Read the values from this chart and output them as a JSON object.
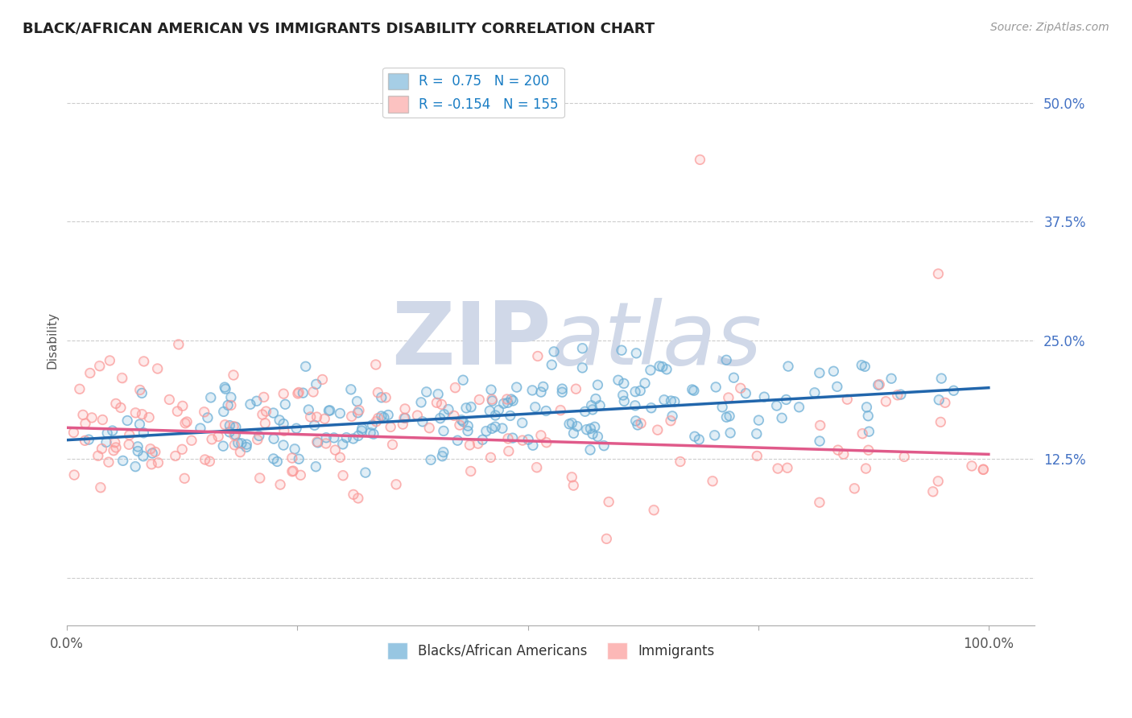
{
  "title": "BLACK/AFRICAN AMERICAN VS IMMIGRANTS DISABILITY CORRELATION CHART",
  "source": "Source: ZipAtlas.com",
  "ylabel": "Disability",
  "xlabel": "",
  "blue_R": 0.75,
  "blue_N": 200,
  "pink_R": -0.154,
  "pink_N": 155,
  "blue_color": "#6baed6",
  "pink_color": "#fb9a99",
  "blue_line_color": "#2166ac",
  "pink_line_color": "#e05a8a",
  "legend_label_blue": "Blacks/African Americans",
  "legend_label_pink": "Immigrants",
  "x_ticks": [
    0.0,
    0.25,
    0.5,
    0.75,
    1.0
  ],
  "y_ticks": [
    0.0,
    0.125,
    0.25,
    0.375,
    0.5
  ],
  "y_tick_labels_right": [
    "",
    "12.5%",
    "25.0%",
    "37.5%",
    "50.0%"
  ],
  "xlim": [
    0.0,
    1.05
  ],
  "ylim": [
    -0.05,
    0.55
  ],
  "watermark_zip": "ZIP",
  "watermark_atlas": "atlas",
  "watermark_color": "#d0d8e8",
  "background_color": "#ffffff",
  "blue_intercept": 0.145,
  "blue_slope": 0.055,
  "pink_intercept": 0.158,
  "pink_slope": -0.028
}
